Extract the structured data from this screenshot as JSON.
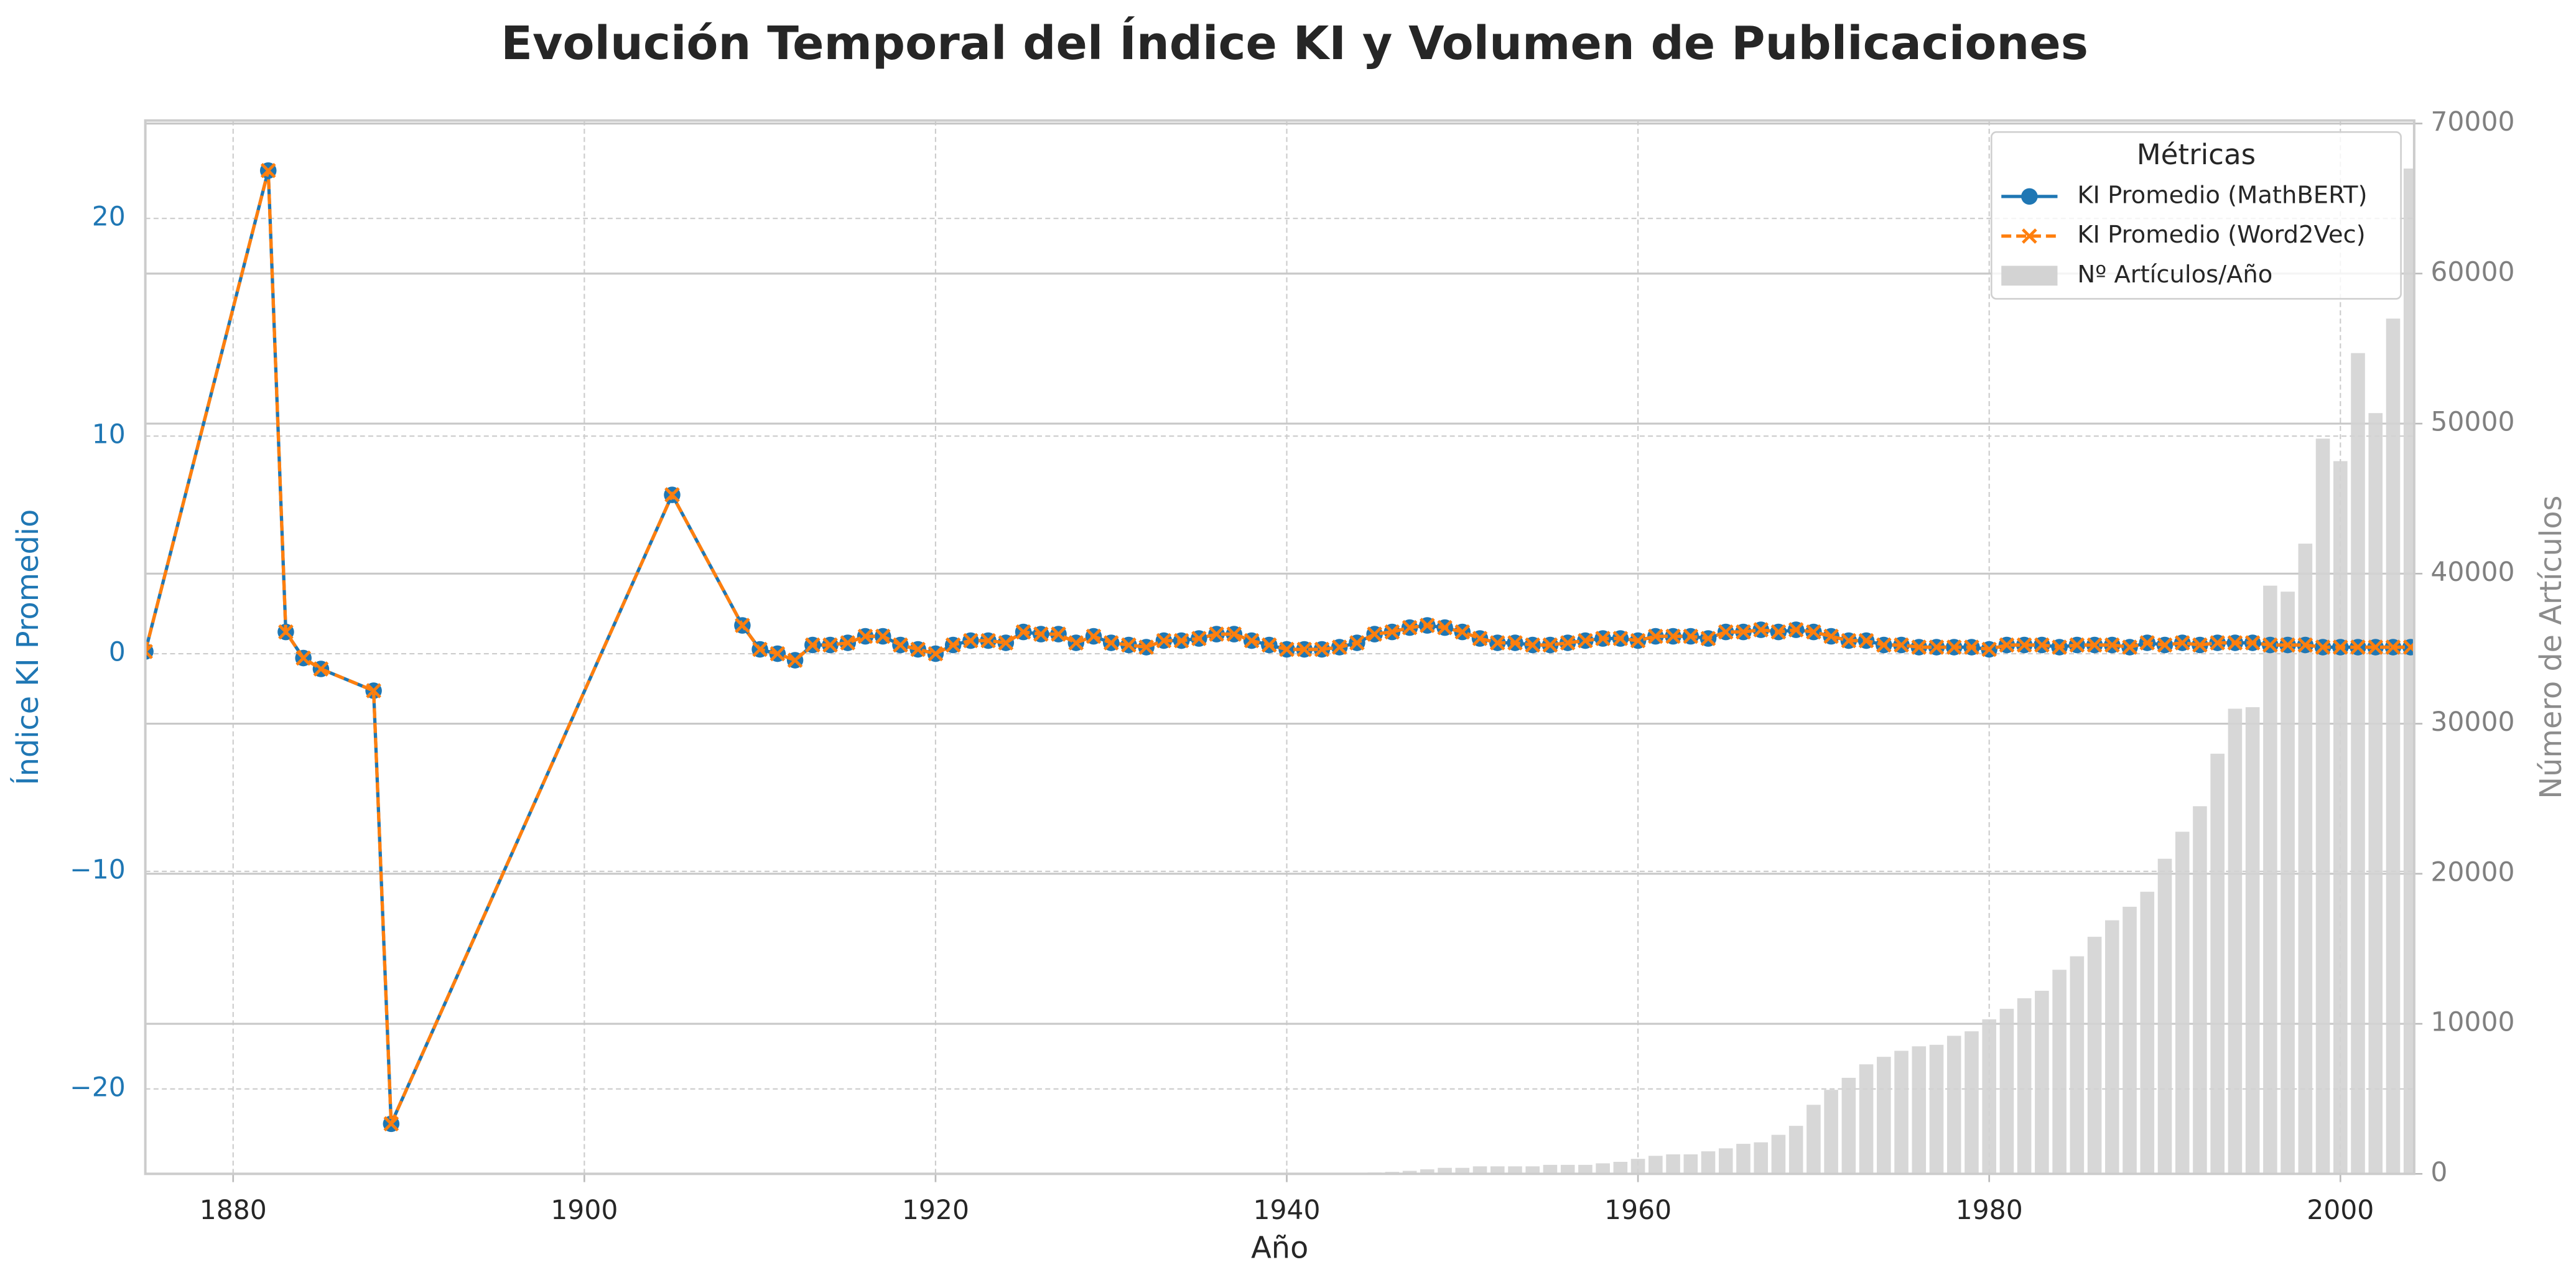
{
  "chart_data": {
    "type": "line",
    "title": "Evolución Temporal del Índice KI y Volumen de Publicaciones",
    "x_label": "Año",
    "y_label": "Índice KI Promedio",
    "y2_label": "Número de Artículos",
    "legend_title": "Métricas",
    "legend": "upper right",
    "grid": true,
    "xlim": [
      1875,
      2004.2
    ],
    "ylim": [
      -23.9,
      24.5
    ],
    "y2lim": [
      0,
      70200
    ],
    "xticks": [
      1880,
      1900,
      1920,
      1940,
      1960,
      1980,
      2000
    ],
    "yticks": [
      {
        "value": -20,
        "label": "−20"
      },
      {
        "value": -10,
        "label": "−10"
      },
      0,
      10,
      20
    ],
    "y2ticks": [
      0,
      10000,
      20000,
      30000,
      40000,
      50000,
      60000,
      70000
    ],
    "x": [
      1875,
      1882,
      1883,
      1884,
      1885,
      1888,
      1889,
      1905,
      1909,
      1910,
      1911,
      1912,
      1913,
      1914,
      1915,
      1916,
      1917,
      1918,
      1919,
      1920,
      1921,
      1922,
      1923,
      1924,
      1925,
      1926,
      1927,
      1928,
      1929,
      1930,
      1931,
      1932,
      1933,
      1934,
      1935,
      1936,
      1937,
      1938,
      1939,
      1940,
      1941,
      1942,
      1943,
      1944,
      1945,
      1946,
      1947,
      1948,
      1949,
      1950,
      1951,
      1952,
      1953,
      1954,
      1955,
      1956,
      1957,
      1958,
      1959,
      1960,
      1961,
      1962,
      1963,
      1964,
      1965,
      1966,
      1967,
      1968,
      1969,
      1970,
      1971,
      1972,
      1973,
      1974,
      1975,
      1976,
      1977,
      1978,
      1979,
      1980,
      1981,
      1982,
      1983,
      1984,
      1985,
      1986,
      1987,
      1988,
      1989,
      1990,
      1991,
      1992,
      1993,
      1994,
      1995,
      1996,
      1997,
      1998,
      1999,
      2000,
      2001,
      2002,
      2003,
      2004
    ],
    "series": [
      {
        "name": "KI Promedio (MathBERT)",
        "type": "line",
        "color": "#1f77b4",
        "marker": "o",
        "linestyle": "solid",
        "values": [
          0.1,
          22.2,
          1.0,
          -0.2,
          -0.7,
          -1.7,
          -21.6,
          7.3,
          1.3,
          0.2,
          0.0,
          -0.3,
          0.4,
          0.4,
          0.5,
          0.8,
          0.8,
          0.4,
          0.2,
          0.0,
          0.4,
          0.6,
          0.6,
          0.5,
          1.0,
          0.9,
          0.9,
          0.5,
          0.8,
          0.5,
          0.4,
          0.3,
          0.6,
          0.6,
          0.7,
          0.9,
          0.9,
          0.6,
          0.4,
          0.2,
          0.2,
          0.2,
          0.3,
          0.5,
          0.9,
          1.0,
          1.2,
          1.3,
          1.2,
          1.0,
          0.7,
          0.5,
          0.5,
          0.4,
          0.4,
          0.5,
          0.6,
          0.7,
          0.7,
          0.6,
          0.8,
          0.8,
          0.8,
          0.7,
          1.0,
          1.0,
          1.1,
          1.0,
          1.1,
          1.0,
          0.8,
          0.6,
          0.6,
          0.4,
          0.4,
          0.3,
          0.3,
          0.3,
          0.3,
          0.2,
          0.4,
          0.4,
          0.4,
          0.3,
          0.4,
          0.4,
          0.4,
          0.3,
          0.5,
          0.4,
          0.5,
          0.4,
          0.5,
          0.5,
          0.5,
          0.4,
          0.4,
          0.4,
          0.3,
          0.3,
          0.3,
          0.3,
          0.3,
          0.3
        ]
      },
      {
        "name": "KI Promedio (Word2Vec)",
        "type": "line",
        "color": "#ff7f0e",
        "marker": "x",
        "linestyle": "dashed",
        "values": [
          0.1,
          22.2,
          1.0,
          -0.2,
          -0.7,
          -1.7,
          -21.6,
          7.3,
          1.3,
          0.2,
          0.0,
          -0.3,
          0.4,
          0.4,
          0.5,
          0.8,
          0.8,
          0.4,
          0.2,
          0.0,
          0.4,
          0.6,
          0.6,
          0.5,
          1.0,
          0.9,
          0.9,
          0.5,
          0.8,
          0.5,
          0.4,
          0.3,
          0.6,
          0.6,
          0.7,
          0.9,
          0.9,
          0.6,
          0.4,
          0.2,
          0.2,
          0.2,
          0.3,
          0.5,
          0.9,
          1.0,
          1.2,
          1.3,
          1.2,
          1.0,
          0.7,
          0.5,
          0.5,
          0.4,
          0.4,
          0.5,
          0.6,
          0.7,
          0.7,
          0.6,
          0.8,
          0.8,
          0.8,
          0.7,
          1.0,
          1.0,
          1.1,
          1.0,
          1.1,
          1.0,
          0.8,
          0.6,
          0.6,
          0.4,
          0.4,
          0.3,
          0.3,
          0.3,
          0.3,
          0.2,
          0.4,
          0.4,
          0.4,
          0.3,
          0.4,
          0.4,
          0.4,
          0.3,
          0.5,
          0.4,
          0.5,
          0.4,
          0.5,
          0.5,
          0.5,
          0.4,
          0.4,
          0.4,
          0.3,
          0.3,
          0.3,
          0.3,
          0.3,
          0.3
        ]
      },
      {
        "name": "Nº Artículos/Año",
        "type": "bar",
        "axis": "y2",
        "color": "#d3d3d3",
        "values": [
          2,
          1,
          3,
          2,
          2,
          1,
          1,
          3,
          8,
          12,
          10,
          9,
          15,
          14,
          12,
          14,
          13,
          10,
          16,
          18,
          20,
          22,
          25,
          28,
          30,
          33,
          35,
          38,
          40,
          45,
          48,
          50,
          55,
          58,
          60,
          65,
          70,
          72,
          75,
          70,
          65,
          60,
          62,
          70,
          90,
          130,
          200,
          300,
          400,
          400,
          500,
          500,
          500,
          500,
          600,
          600,
          600,
          700,
          800,
          1000,
          1200,
          1300,
          1300,
          1500,
          1700,
          2000,
          2100,
          2600,
          3200,
          4600,
          5600,
          6400,
          7300,
          7800,
          8200,
          8500,
          8600,
          9200,
          9500,
          10300,
          11000,
          11700,
          12200,
          13600,
          14500,
          15800,
          16900,
          17800,
          18800,
          21000,
          22800,
          24500,
          28000,
          31000,
          31100,
          39200,
          38800,
          42000,
          49000,
          47500,
          54700,
          50700,
          57000,
          67000
        ]
      }
    ]
  }
}
